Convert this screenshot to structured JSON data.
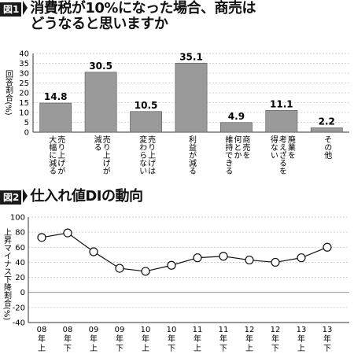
{
  "figure1": {
    "badge": "図1",
    "title_line1": "消費税が10%になった場合、商売は",
    "title_line2": "どうなると思いますか"
  },
  "figure2": {
    "badge": "図2",
    "title": "仕入れ値DIの動向"
  },
  "chart_data": [
    {
      "type": "bar",
      "title": "消費税が10%になった場合、商売はどうなると思いますか",
      "ylabel": "回答割合(%)",
      "ylim": [
        0,
        40
      ],
      "yticks": [
        0,
        5,
        10,
        15,
        20,
        25,
        30,
        35,
        40
      ],
      "grid": true,
      "categories": [
        [
          "売り上げが",
          "大幅に減る"
        ],
        [
          "売り上げが",
          "減る"
        ],
        [
          "売り上げは",
          "変わらない"
        ],
        [
          "利益が減る"
        ],
        [
          "商売を",
          "何とか",
          "維持できる"
        ],
        [
          "廃業を",
          "考えざるを",
          "得ない"
        ],
        [
          "その他"
        ]
      ],
      "values": [
        14.8,
        30.5,
        10.5,
        35.1,
        4.9,
        11.1,
        2.2
      ],
      "value_labels": [
        "14.8",
        "30.5",
        "10.5",
        "35.1",
        "4.9",
        "11.1",
        "2.2"
      ],
      "bar_color": "#9a9a9a"
    },
    {
      "type": "line",
      "title": "仕入れ値DIの動向",
      "ylabel": "上昇マイナス下降割合(%)",
      "ylim": [
        -40,
        100
      ],
      "yticks": [
        -40,
        -20,
        0,
        20,
        40,
        60,
        80,
        100
      ],
      "grid": true,
      "x": [
        [
          "08",
          "年",
          "上"
        ],
        [
          "08",
          "年",
          "下"
        ],
        [
          "09",
          "年",
          "上"
        ],
        [
          "09",
          "年",
          "下"
        ],
        [
          "10",
          "年",
          "上"
        ],
        [
          "10",
          "年",
          "下"
        ],
        [
          "11",
          "年",
          "上"
        ],
        [
          "11",
          "年",
          "下"
        ],
        [
          "12",
          "年",
          "上"
        ],
        [
          "12",
          "年",
          "下"
        ],
        [
          "13",
          "年",
          "上"
        ],
        [
          "13",
          "年",
          "下"
        ]
      ],
      "values": [
        73,
        79,
        54,
        32,
        28,
        36,
        46,
        48,
        43,
        40,
        46,
        60
      ]
    }
  ]
}
